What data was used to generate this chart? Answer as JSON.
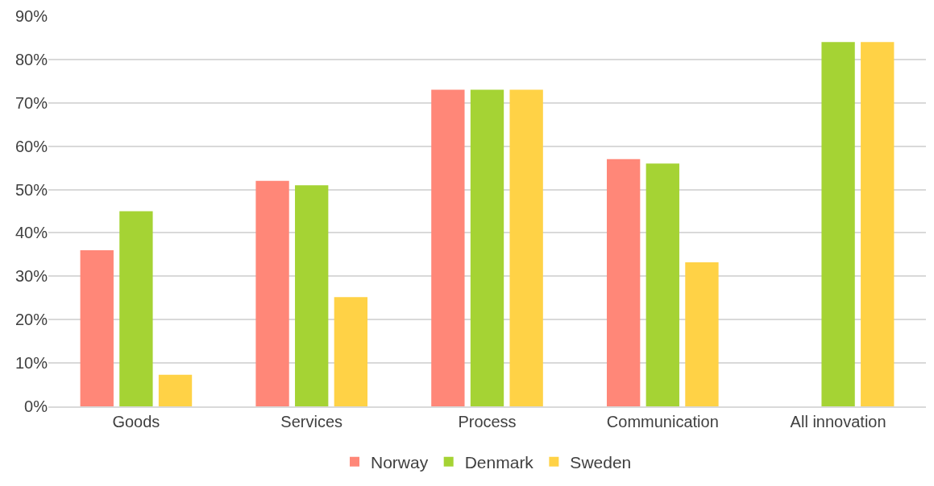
{
  "chart_data": {
    "type": "bar",
    "categories": [
      "Goods",
      "Services",
      "Process",
      "Communication",
      "All innovation"
    ],
    "series": [
      {
        "name": "Norway",
        "color": "#ff8778",
        "values": [
          36,
          52,
          73,
          57,
          null
        ]
      },
      {
        "name": "Denmark",
        "color": "#a5d334",
        "values": [
          45,
          51,
          73,
          56,
          84
        ]
      },
      {
        "name": "Sweden",
        "color": "#ffd246",
        "values": [
          7.3,
          25.2,
          73,
          33.2,
          84
        ]
      }
    ],
    "ylim": [
      0,
      90
    ],
    "yticks": [
      {
        "value": 0,
        "label": "0%"
      },
      {
        "value": 10,
        "label": "10%"
      },
      {
        "value": 20,
        "label": "20%"
      },
      {
        "value": 30,
        "label": "30%"
      },
      {
        "value": 40,
        "label": "40%"
      },
      {
        "value": 50,
        "label": "50%"
      },
      {
        "value": 60,
        "label": "60%"
      },
      {
        "value": 70,
        "label": "70%"
      },
      {
        "value": 80,
        "label": "80%"
      },
      {
        "value": 90,
        "label": "90%"
      }
    ],
    "grid": "y",
    "legend": "bottom"
  }
}
